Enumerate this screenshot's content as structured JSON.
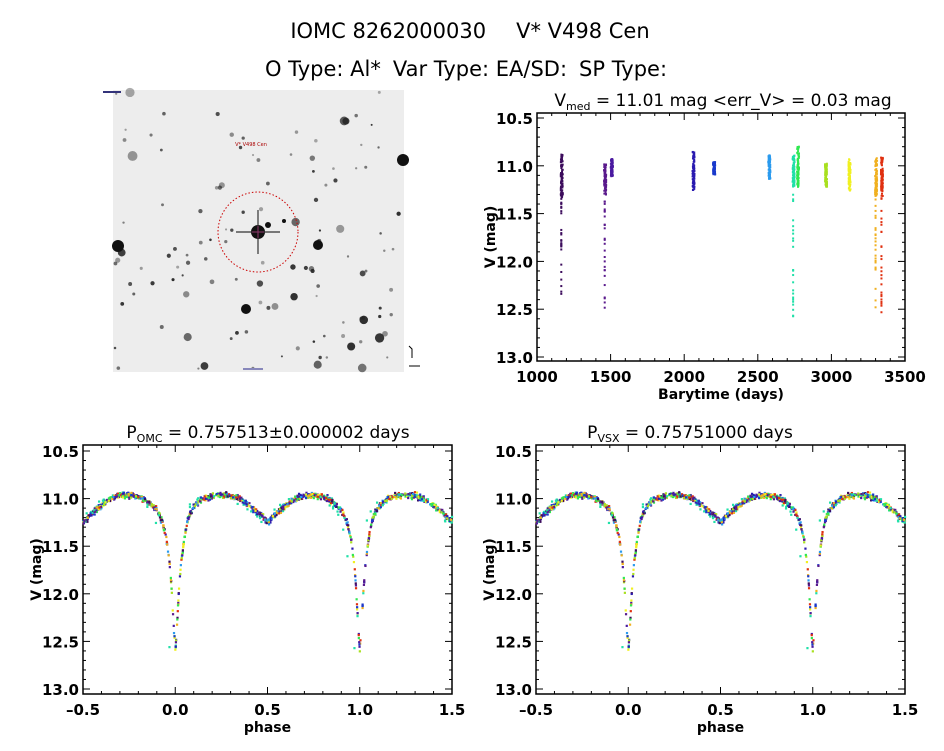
{
  "header": {
    "object_id": "IOMC 8262000030",
    "object_name": "V* V498 Cen",
    "o_type": "O Type: Al*",
    "var_type": "Var Type: EA/SD:",
    "sp_type": "SP Type:"
  },
  "finder_image": {
    "target_label": "V* V498 Cen",
    "marker_color": "#cc0000"
  },
  "chart_data": [
    {
      "type": "scatter",
      "title_main": "V",
      "title_sub": "med",
      "title_rest": " = 11.01 mag <err_V> = 0.03 mag",
      "xlabel": "Barytime (days)",
      "ylabel": "V (mag)",
      "xlim": [
        1000,
        3500
      ],
      "ylim": [
        13.0,
        10.5
      ],
      "y_inverted": true,
      "xticks": [
        "1000",
        "1500",
        "2000",
        "2500",
        "3000",
        "3500"
      ],
      "yticks": [
        "10.5",
        "11.0",
        "11.5",
        "12.0",
        "12.5",
        "13.0"
      ],
      "seasons": [
        {
          "x": 1165,
          "v_bright": 10.87,
          "v_dense_faint": 11.32,
          "v_faintest": 12.55,
          "color": "#3c0c5c"
        },
        {
          "x": 1460,
          "v_bright": 10.97,
          "v_dense_faint": 11.3,
          "v_faintest": 12.58,
          "color": "#5a1a8c"
        },
        {
          "x": 1505,
          "v_bright": 10.92,
          "v_dense_faint": 11.1,
          "v_faintest": 11.1,
          "color": "#4a1aa0"
        },
        {
          "x": 2060,
          "v_bright": 10.84,
          "v_dense_faint": 11.25,
          "v_faintest": 11.25,
          "color": "#2a1ab0"
        },
        {
          "x": 2200,
          "v_bright": 10.95,
          "v_dense_faint": 11.08,
          "v_faintest": 11.08,
          "color": "#1a3acc"
        },
        {
          "x": 2575,
          "v_bright": 10.88,
          "v_dense_faint": 11.13,
          "v_faintest": 11.13,
          "color": "#2a9aee"
        },
        {
          "x": 2740,
          "v_bright": 10.88,
          "v_dense_faint": 11.2,
          "v_faintest": 12.65,
          "color": "#20e0a8"
        },
        {
          "x": 2770,
          "v_bright": 10.78,
          "v_dense_faint": 11.22,
          "v_faintest": 11.22,
          "color": "#30e850"
        },
        {
          "x": 2960,
          "v_bright": 10.96,
          "v_dense_faint": 11.22,
          "v_faintest": 11.22,
          "color": "#a8e020"
        },
        {
          "x": 3120,
          "v_bright": 10.92,
          "v_dense_faint": 11.25,
          "v_faintest": 11.25,
          "color": "#f0f020"
        },
        {
          "x": 3300,
          "v_bright": 10.9,
          "v_dense_faint": 11.3,
          "v_faintest": 12.48,
          "color": "#f0b020"
        },
        {
          "x": 3340,
          "v_bright": 10.9,
          "v_dense_faint": 11.33,
          "v_faintest": 12.55,
          "color": "#e03010"
        }
      ]
    },
    {
      "type": "scatter",
      "title_main": "P",
      "title_sub": "OMC",
      "title_rest": " = 0.757513±0.000002 days",
      "xlabel": "phase",
      "ylabel": "V (mag)",
      "xlim": [
        -0.5,
        1.5
      ],
      "ylim": [
        13.0,
        10.5
      ],
      "y_inverted": true,
      "xticks": [
        "-0.5",
        "0.0",
        "0.5",
        "1.0",
        "1.5"
      ],
      "yticks": [
        "10.5",
        "11.0",
        "11.5",
        "12.0",
        "12.5",
        "13.0"
      ],
      "light_curve": {
        "phase": [
          0,
          0.01,
          0.02,
          0.03,
          0.05,
          0.07,
          0.1,
          0.15,
          0.2,
          0.25,
          0.3,
          0.35,
          0.4,
          0.45,
          0.5,
          0.55,
          0.6,
          0.65,
          0.7,
          0.75,
          0.8,
          0.85,
          0.9,
          0.93,
          0.95,
          0.97,
          0.98,
          0.99,
          1.0
        ],
        "v": [
          12.6,
          12.3,
          11.95,
          11.7,
          11.4,
          11.2,
          11.08,
          11.0,
          10.97,
          10.96,
          10.97,
          11.0,
          11.07,
          11.15,
          11.25,
          11.15,
          11.07,
          11.0,
          10.97,
          10.96,
          10.98,
          11.03,
          11.12,
          11.25,
          11.4,
          11.7,
          11.95,
          12.3,
          12.6
        ]
      }
    },
    {
      "type": "scatter",
      "title_main": "P",
      "title_sub": "VSX",
      "title_rest": " = 0.75751000 days",
      "xlabel": "phase",
      "ylabel": "V (mag)",
      "xlim": [
        -0.5,
        1.5
      ],
      "ylim": [
        13.0,
        10.5
      ],
      "y_inverted": true,
      "xticks": [
        "-0.5",
        "0.0",
        "0.5",
        "1.0",
        "1.5"
      ],
      "yticks": [
        "10.5",
        "11.0",
        "11.5",
        "12.0",
        "12.5",
        "13.0"
      ]
    }
  ]
}
